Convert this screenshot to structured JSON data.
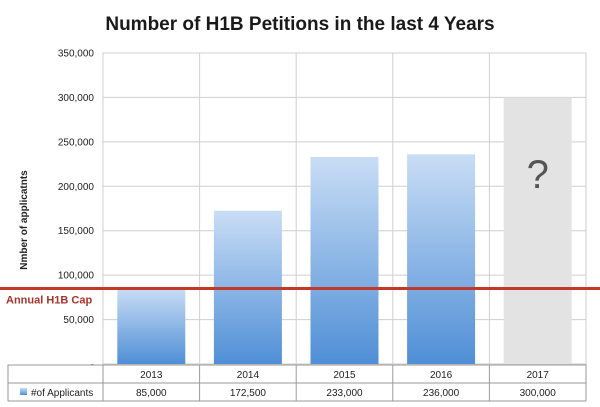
{
  "chart_data": {
    "type": "bar",
    "title": "Number of H1B Petitions in the last 4 Years",
    "ylabel": "Nmber of applicatnts",
    "xlabel": "",
    "ylim": [
      0,
      350000
    ],
    "yticks": [
      "350,000",
      "300,000",
      "250,000",
      "200,000",
      "150,000",
      "100,000",
      "50,000",
      "-"
    ],
    "ytick_values": [
      350000,
      300000,
      250000,
      200000,
      150000,
      100000,
      50000,
      0
    ],
    "categories": [
      "2013",
      "2014",
      "2015",
      "2016",
      "2017"
    ],
    "series": [
      {
        "name": "#of Applicants",
        "values": [
          85000,
          172500,
          233000,
          236000,
          300000
        ],
        "value_labels": [
          "85,000",
          "172,500",
          "233,000",
          "236,000",
          "300,000"
        ]
      }
    ],
    "estimated_category": "2017",
    "estimated_mark": "?",
    "cap_line": {
      "label": "Annual H1B Cap",
      "value": 85000,
      "color": "#c0392b"
    },
    "grid": true,
    "legend": "data table below chart",
    "colors": {
      "bar_top": "#c9ddf5",
      "bar_bottom": "#4f8fd6",
      "estimate_bar": "#e3e3e3",
      "grid": "#cfcfcf"
    }
  }
}
